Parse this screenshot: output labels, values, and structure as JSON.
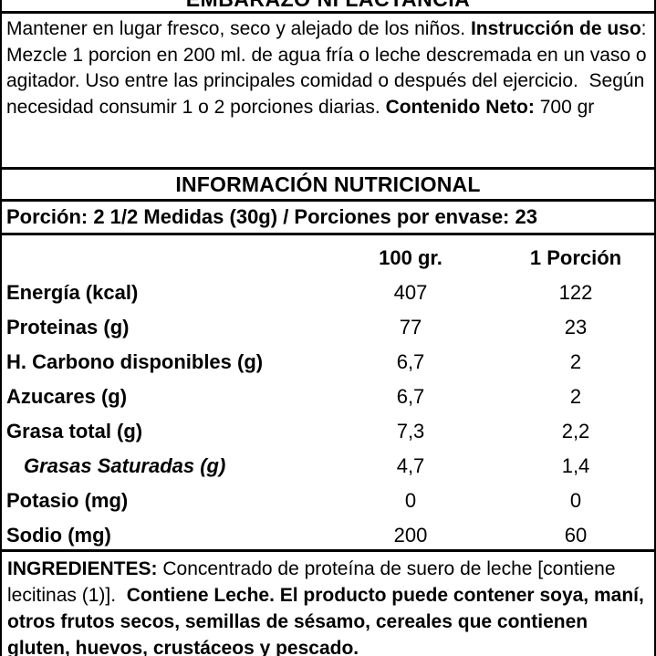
{
  "label": {
    "warning_title": "EMBARAZO NI LACTANCIA",
    "storage_instructions": {
      "segments": [
        {
          "text": "Mantener en lugar fresco, seco y alejado de los niños. ",
          "bold": false
        },
        {
          "text": "Instrucción de uso",
          "bold": true
        },
        {
          "text": ": Mezcle 1 porcion en 200 ml. de agua fría o leche descremada en un vaso o agitador. Uso entre las principales comidad o después del ejercicio.  Según necesidad consumir 1 o 2 porciones diarias. ",
          "bold": false
        },
        {
          "text": "Contenido Neto:",
          "bold": true
        },
        {
          "text": " 700 gr",
          "bold": false
        }
      ]
    },
    "nutrition_header": "INFORMACIÓN NUTRICIONAL",
    "serving_info": "Porción: 2 1/2 Medidas (30g) / Porciones por envase: 23",
    "nutrition_table": {
      "columns": [
        "",
        "100 gr.",
        "1 Porción"
      ],
      "rows": [
        {
          "name": "Energía (kcal)",
          "per_100g": "407",
          "per_portion": "122",
          "style": "bold"
        },
        {
          "name": "Proteinas (g)",
          "per_100g": "77",
          "per_portion": "23",
          "style": "bold"
        },
        {
          "name": "H. Carbono disponibles (g)",
          "per_100g": "6,7",
          "per_portion": "2",
          "style": "bold"
        },
        {
          "name": "Azucares (g)",
          "per_100g": "6,7",
          "per_portion": "2",
          "style": "bold"
        },
        {
          "name": "Grasa total (g)",
          "per_100g": "7,3",
          "per_portion": "2,2",
          "style": "bold"
        },
        {
          "name": "Grasas Saturadas (g)",
          "per_100g": "4,7",
          "per_portion": "1,4",
          "style": "italic-indented"
        },
        {
          "name": "Potasio (mg)",
          "per_100g": "0",
          "per_portion": "0",
          "style": "bold"
        },
        {
          "name": "Sodio (mg)",
          "per_100g": "200",
          "per_portion": "60",
          "style": "bold"
        }
      ]
    },
    "ingredients": {
      "segments": [
        {
          "text": "INGREDIENTES:",
          "bold": true
        },
        {
          "text": " Concentrado de proteína de suero de leche [contiene lecitinas (1)].  ",
          "bold": false
        },
        {
          "text": "Contiene Leche. El producto puede contener soya, maní, otros frutos secos, semillas de sésamo, cereales que contienen gluten, huevos, crustáceos y pescado.",
          "bold": true
        }
      ]
    },
    "colors": {
      "text": "#000000",
      "background": "#ffffff",
      "border": "#000000"
    }
  }
}
